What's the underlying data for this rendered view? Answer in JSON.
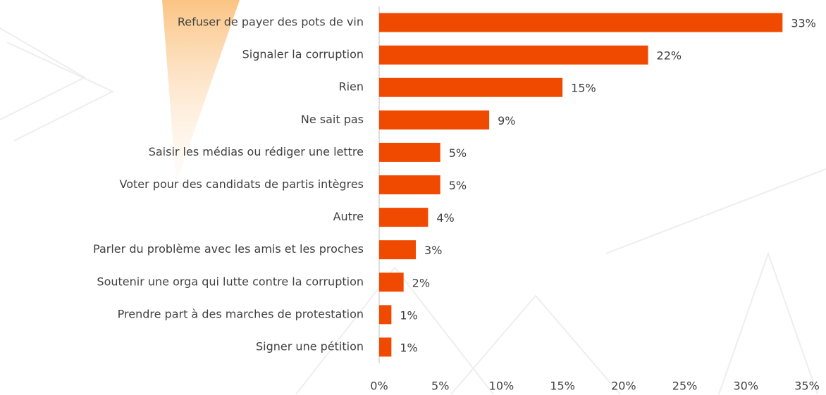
{
  "chart_data": {
    "type": "bar",
    "categories": [
      "Refuser de payer des pots de vin",
      "Signaler la corruption",
      "Rien",
      "Ne sait pas",
      "Saisir les médias ou rédiger une lettre",
      "Voter pour des candidats de partis intègres",
      "Autre",
      "Parler du problème avec les amis et les proches",
      "Soutenir une orga qui lutte contre la corruption",
      "Prendre part à des marches de protestation",
      "Signer une pétition"
    ],
    "values": [
      33,
      22,
      15,
      9,
      5,
      5,
      4,
      3,
      2,
      1,
      1
    ],
    "value_labels": [
      "33%",
      "22%",
      "15%",
      "9%",
      "5%",
      "5%",
      "4%",
      "3%",
      "2%",
      "1%",
      "1%"
    ],
    "color": "#f04a00",
    "xlim": [
      0,
      35
    ],
    "xticks": [
      {
        "value": 0,
        "label": "0%"
      },
      {
        "value": 5,
        "label": "5%"
      },
      {
        "value": 10,
        "label": "10%"
      },
      {
        "value": 15,
        "label": "15%"
      },
      {
        "value": 20,
        "label": "20%"
      },
      {
        "value": 25,
        "label": "25%"
      },
      {
        "value": 30,
        "label": "30%"
      },
      {
        "value": 35,
        "label": "35%"
      }
    ],
    "grid": false
  }
}
